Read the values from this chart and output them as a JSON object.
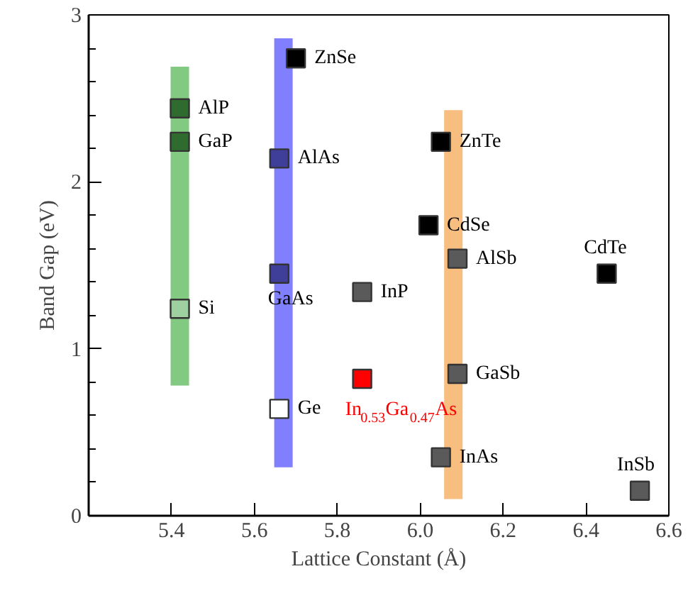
{
  "chart_data": {
    "type": "scatter",
    "xlabel": "Lattice Constant (Å)",
    "ylabel": "Band Gap (eV)",
    "xlim": [
      5.2,
      6.6
    ],
    "ylim": [
      0,
      3
    ],
    "xticks": [
      5.4,
      5.6,
      5.8,
      {
        "value": 6.0,
        "label": "6.0"
      },
      6.2,
      6.4,
      6.6
    ],
    "yticks": [
      0,
      {
        "value": 0.2,
        "label": null
      },
      {
        "value": 0.4,
        "label": null
      },
      {
        "value": 0.6,
        "label": null
      },
      {
        "value": 0.8,
        "label": null
      },
      1,
      {
        "value": 1.2,
        "label": null
      },
      {
        "value": 1.4,
        "label": null
      },
      {
        "value": 1.6,
        "label": null
      },
      {
        "value": 1.8,
        "label": null
      },
      2,
      {
        "value": 2.2,
        "label": null
      },
      {
        "value": 2.4,
        "label": null
      },
      {
        "value": 2.6,
        "label": null
      },
      {
        "value": 2.8,
        "label": null
      },
      3
    ],
    "grid": false,
    "marker": "square",
    "series": [
      {
        "type": "line",
        "marker": "none",
        "color": "#6cbf6c",
        "x": [
          5.42,
          5.42
        ],
        "values": [
          0.78,
          2.69
        ]
      },
      {
        "type": "line",
        "marker": "none",
        "color": "#6a6aff",
        "x": [
          5.67,
          5.67
        ],
        "values": [
          0.29,
          2.86
        ]
      },
      {
        "type": "line",
        "marker": "none",
        "color": "#f7b36a",
        "x": [
          6.08,
          6.08
        ],
        "values": [
          0.1,
          2.43
        ]
      },
      {
        "color": "#2f6b2f",
        "x": [
          5.42,
          5.42
        ],
        "values": [
          2.44,
          2.24
        ]
      },
      {
        "color": "#9fd09f",
        "x": [
          5.42
        ],
        "values": [
          1.24
        ]
      },
      {
        "color": "#3f3f9a",
        "x": [
          5.66,
          5.66
        ],
        "values": [
          2.14,
          1.45
        ]
      },
      {
        "color": "#ffffff",
        "x": [
          5.66
        ],
        "values": [
          0.64
        ]
      },
      {
        "color": "#000000",
        "x": [
          5.7,
          6.05,
          6.02,
          6.45
        ],
        "values": [
          2.74,
          2.24,
          1.74,
          1.45
        ]
      },
      {
        "color": "#5a5a5a",
        "x": [
          5.86,
          6.09,
          6.09,
          6.05,
          6.53
        ],
        "values": [
          1.34,
          1.54,
          0.85,
          0.35,
          0.15
        ]
      },
      {
        "name": "In$_{0.53}$Ga$_{0.47}$As",
        "color": "#ff0000",
        "x": [
          5.86
        ],
        "values": [
          0.82
        ]
      }
    ],
    "annotations": [
      {
        "text": "AlP",
        "x": 5.42,
        "y": 2.44
      },
      {
        "text": "GaP",
        "x": 5.42,
        "y": 2.24
      },
      {
        "text": "Si",
        "x": 5.42,
        "y": 1.24
      },
      {
        "text": "AlAs",
        "x": 5.66,
        "y": 2.14
      },
      {
        "text": "GaAs",
        "x": 5.66,
        "y": 1.45
      },
      {
        "text": "Ge",
        "x": 5.66,
        "y": 0.64
      },
      {
        "text": "ZnSe",
        "x": 5.7,
        "y": 2.74
      },
      {
        "text": "InP",
        "x": 5.86,
        "y": 1.34
      },
      {
        "text": "ZnTe",
        "x": 6.05,
        "y": 2.24
      },
      {
        "text": "CdSe",
        "x": 6.02,
        "y": 1.74
      },
      {
        "text": "AlSb",
        "x": 6.09,
        "y": 1.54
      },
      {
        "text": "GaSb",
        "x": 6.09,
        "y": 0.85
      },
      {
        "text": "InAs",
        "x": 6.05,
        "y": 0.35
      },
      {
        "text": "CdTe",
        "x": 6.45,
        "y": 1.45
      },
      {
        "text": "InSb",
        "x": 6.53,
        "y": 0.15
      }
    ]
  }
}
